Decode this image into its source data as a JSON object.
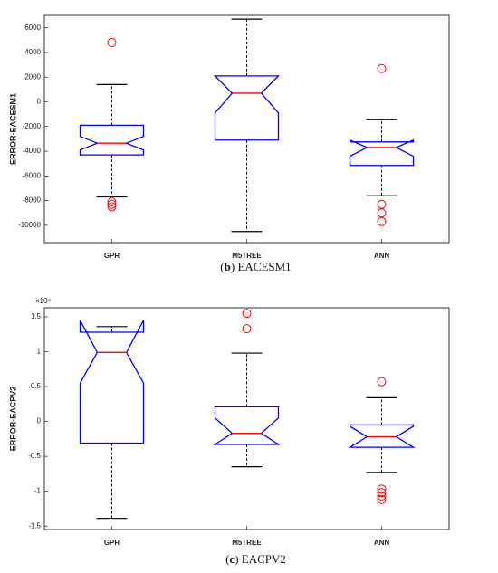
{
  "chart_data": [
    {
      "type": "box",
      "y_label": "ERROR-EACESM1",
      "caption": [
        "(",
        "b",
        ") EACESM1"
      ],
      "categories": [
        "GPR",
        "M5TREE",
        "ANN"
      ],
      "ylim": [
        -11400,
        7000
      ],
      "yticks": [
        6000,
        4000,
        2000,
        0,
        -2000,
        -4000,
        -6000,
        -8000,
        -10000
      ],
      "box_color": "#0000ff",
      "median_color": "#ff0000",
      "whisker_color": "#000000",
      "outlier_color": "#ff0000",
      "boxes": [
        {
          "whisker_high": 1400,
          "q3": -1900,
          "notch_high": -2800,
          "median": -3350,
          "notch_low": -3900,
          "q1": -4300,
          "whisker_low": -7700,
          "outliers": [
            4800,
            -8100,
            -8300,
            -8500
          ]
        },
        {
          "whisker_high": 6700,
          "q3": 2100,
          "notch_high": 2100,
          "median": 700,
          "notch_low": -900,
          "q1": -3100,
          "whisker_low": -10500,
          "outliers": []
        },
        {
          "whisker_high": -1450,
          "q3": -3250,
          "notch_high": -3100,
          "median": -3700,
          "notch_low": -4400,
          "q1": -5150,
          "whisker_low": -7600,
          "outliers": [
            2700,
            -8300,
            -9000,
            -9700
          ]
        }
      ]
    },
    {
      "type": "box",
      "y_label": "ERROR-EACPV2",
      "caption": [
        "(",
        "c",
        ") EACPV2"
      ],
      "y_exponent_label": "×10⁴",
      "categories": [
        "GPR",
        "M5TREE",
        "ANN"
      ],
      "ylim": [
        -1.55,
        1.63
      ],
      "yticks": [
        1.5,
        1,
        0.5,
        0,
        -0.5,
        -1,
        -1.5
      ],
      "box_color": "#0000ff",
      "median_color": "#ff0000",
      "whisker_color": "#000000",
      "outlier_color": "#ff0000",
      "boxes": [
        {
          "whisker_high": 1.36,
          "q3": 1.28,
          "notch_high": 1.45,
          "median": 0.99,
          "notch_low": 0.55,
          "q1": -0.31,
          "whisker_low": -1.39,
          "outliers": []
        },
        {
          "whisker_high": 0.98,
          "q3": 0.21,
          "notch_high": 0.05,
          "median": -0.17,
          "notch_low": -0.33,
          "q1": -0.33,
          "whisker_low": -0.65,
          "outliers": [
            1.55,
            1.33
          ]
        },
        {
          "whisker_high": 0.34,
          "q3": -0.05,
          "notch_high": -0.07,
          "median": -0.22,
          "notch_low": -0.37,
          "q1": -0.37,
          "whisker_low": -0.73,
          "outliers": [
            0.57,
            -0.97,
            -1.02,
            -1.07,
            -1.12
          ]
        }
      ]
    }
  ]
}
